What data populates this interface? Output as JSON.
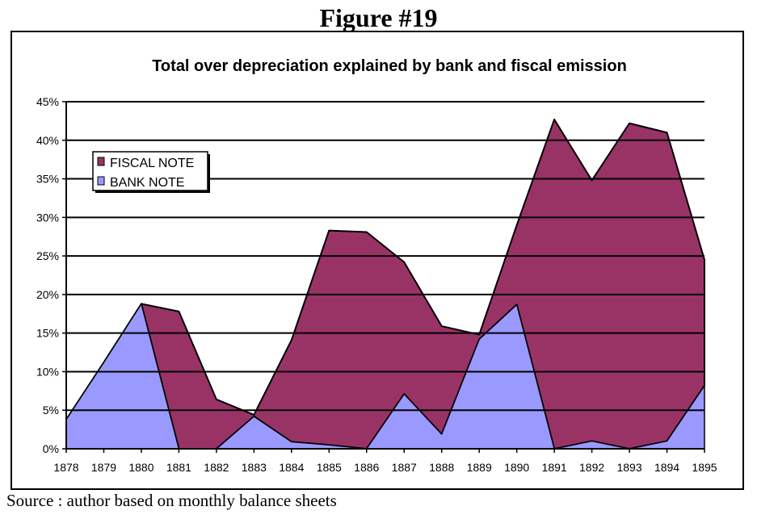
{
  "figure_title": "Figure #19",
  "source_note": "Source : author based on monthly balance sheets",
  "colors": {
    "fiscal_note": "#993366",
    "bank_note": "#9999FF",
    "gridline": "#000000"
  },
  "chart_data": {
    "type": "area",
    "title": "Total over depreciation explained by bank and fiscal emission",
    "xlabel": "",
    "ylabel": "",
    "ylim": [
      0,
      45
    ],
    "yticks": [
      0,
      5,
      10,
      15,
      20,
      25,
      30,
      35,
      40,
      45
    ],
    "yticklabels": [
      "0%",
      "5%",
      "10%",
      "15%",
      "20%",
      "25%",
      "30%",
      "35%",
      "40%",
      "45%"
    ],
    "grid": true,
    "legend_position": "top-left",
    "stacked": true,
    "categories": [
      "1878",
      "1879",
      "1880",
      "1881",
      "1882",
      "1883",
      "1884",
      "1885",
      "1886",
      "1887",
      "1888",
      "1889",
      "1890",
      "1891",
      "1892",
      "1893",
      "1894",
      "1895"
    ],
    "series": [
      {
        "name": "FISCAL NOTE",
        "color": "#993366",
        "values": [
          0,
          0,
          0,
          17.8,
          6.4,
          0.2,
          13.2,
          27.8,
          28.1,
          17.1,
          14.0,
          0.6,
          10.3,
          42.7,
          33.8,
          42.2,
          40.0,
          16.3
        ]
      },
      {
        "name": "BANK NOTE",
        "color": "#9999FF",
        "values": [
          3.8,
          11.2,
          18.8,
          0,
          0,
          4.2,
          0.9,
          0.5,
          0,
          7.1,
          1.9,
          14.2,
          18.7,
          0,
          1.0,
          0,
          1.0,
          8.2
        ]
      }
    ]
  }
}
